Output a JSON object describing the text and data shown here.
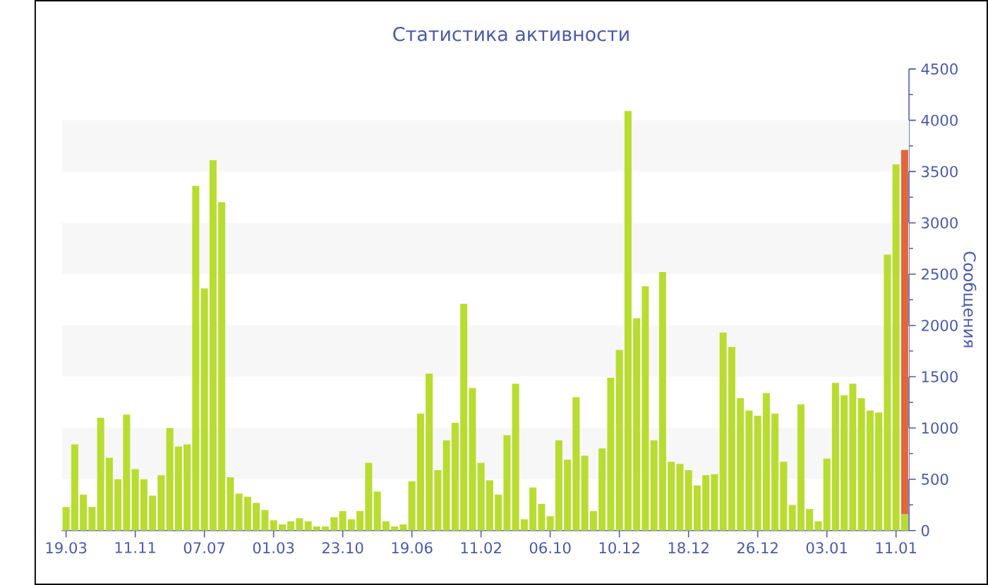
{
  "chart_data": {
    "type": "bar",
    "title": "Статистика активности",
    "ylabel": "Сообщения",
    "categories": [
      "19.03",
      null,
      null,
      null,
      null,
      null,
      null,
      null,
      "11.11",
      null,
      null,
      null,
      null,
      null,
      null,
      null,
      "07.07",
      null,
      null,
      null,
      null,
      null,
      null,
      null,
      "01.03",
      null,
      null,
      null,
      null,
      null,
      null,
      null,
      "23.10",
      null,
      null,
      null,
      null,
      null,
      null,
      null,
      "19.06",
      null,
      null,
      null,
      null,
      null,
      null,
      null,
      "11.02",
      null,
      null,
      null,
      null,
      null,
      null,
      null,
      "06.10",
      null,
      null,
      null,
      null,
      null,
      null,
      null,
      "10.12",
      null,
      null,
      null,
      null,
      null,
      null,
      null,
      "18.12",
      null,
      null,
      null,
      null,
      null,
      null,
      null,
      "26.12",
      null,
      null,
      null,
      null,
      null,
      null,
      null,
      "03.01",
      null,
      null,
      null,
      null,
      null,
      null,
      null,
      "11.01",
      null
    ],
    "stacked": true,
    "series": [
      {
        "color": "#b9dc31",
        "values": [
          230,
          840,
          350,
          230,
          1100,
          710,
          500,
          1130,
          600,
          500,
          340,
          540,
          1000,
          820,
          840,
          3360,
          2360,
          3610,
          3200,
          520,
          360,
          330,
          270,
          200,
          100,
          60,
          90,
          120,
          90,
          40,
          40,
          130,
          190,
          110,
          190,
          660,
          380,
          90,
          40,
          60,
          480,
          1140,
          1530,
          590,
          880,
          1050,
          2210,
          1390,
          660,
          490,
          350,
          930,
          1430,
          110,
          420,
          260,
          140,
          880,
          690,
          1300,
          730,
          190,
          800,
          1490,
          1760,
          4090,
          2070,
          2380,
          880,
          2520,
          670,
          650,
          590,
          440,
          540,
          550,
          1930,
          1790,
          1290,
          1170,
          1120,
          1340,
          1140,
          670,
          250,
          1230,
          210,
          90,
          700,
          1440,
          1320,
          1430,
          1290,
          1170,
          1150,
          2690,
          3570,
          160
        ]
      },
      {
        "color": "#e2663a",
        "values": [
          null,
          null,
          null,
          null,
          null,
          null,
          null,
          null,
          null,
          null,
          null,
          null,
          null,
          null,
          null,
          null,
          null,
          null,
          null,
          null,
          null,
          null,
          null,
          null,
          null,
          null,
          null,
          null,
          null,
          null,
          null,
          null,
          null,
          null,
          null,
          null,
          null,
          null,
          null,
          null,
          null,
          null,
          null,
          null,
          null,
          null,
          null,
          null,
          null,
          null,
          null,
          null,
          null,
          null,
          null,
          null,
          null,
          null,
          null,
          null,
          null,
          null,
          null,
          null,
          null,
          null,
          null,
          null,
          null,
          null,
          null,
          null,
          null,
          null,
          null,
          null,
          null,
          null,
          null,
          null,
          null,
          null,
          null,
          null,
          null,
          null,
          null,
          null,
          null,
          null,
          null,
          null,
          null,
          null,
          null,
          null,
          null,
          3550
        ]
      }
    ],
    "ylim": [
      0,
      4500
    ],
    "yticks": [
      0,
      {
        "value": 250,
        "label": null
      },
      500,
      {
        "value": 750,
        "label": null
      },
      1000,
      {
        "value": 1250,
        "label": null
      },
      1500,
      {
        "value": 1750,
        "label": null
      },
      2000,
      {
        "value": 2250,
        "label": null
      },
      2500,
      {
        "value": 2750,
        "label": null
      },
      3000,
      {
        "value": 3250,
        "label": null
      },
      3500,
      {
        "value": 3750,
        "label": null
      },
      4000,
      {
        "value": 4250,
        "label": null
      },
      4500
    ],
    "bands": [
      {
        "axis": "y",
        "from": 500,
        "to": 1000,
        "color": "#f7f7f7"
      },
      {
        "axis": "y",
        "from": 1500,
        "to": 2000,
        "color": "#f7f7f7"
      },
      {
        "axis": "y",
        "from": 2500,
        "to": 3000,
        "color": "#f7f7f7"
      },
      {
        "axis": "y",
        "from": 3500,
        "to": 4000,
        "color": "#f7f7f7"
      }
    ]
  }
}
